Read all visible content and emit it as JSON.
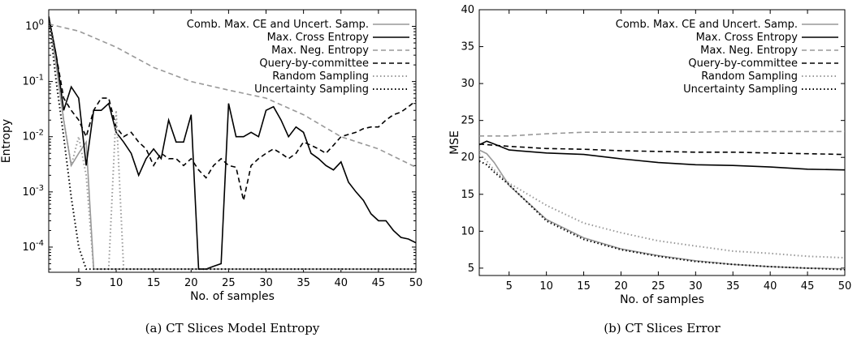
{
  "chart_data": [
    {
      "type": "line",
      "caption": "(a) CT Slices Model Entropy",
      "xlabel": "No. of samples",
      "ylabel": "Entropy",
      "xlim": [
        1,
        50
      ],
      "ylim": [
        3.5e-05,
        2.0
      ],
      "yscale": "log",
      "x_ticks": [
        5,
        10,
        15,
        20,
        25,
        30,
        35,
        40,
        45,
        50
      ],
      "y_ticks": [
        {
          "value": 1,
          "label": "10^0"
        },
        {
          "value": 0.1,
          "label": "10^-1"
        },
        {
          "value": 0.01,
          "label": "10^-2"
        },
        {
          "value": 0.001,
          "label": "10^-3"
        },
        {
          "value": 0.0001,
          "label": "10^-4"
        }
      ],
      "legend_position": "top-right",
      "series": [
        {
          "name": "Comb. Max. CE and Uncert. Samp.",
          "color": "#999999",
          "dash": "solid",
          "x": [
            1,
            2,
            3,
            4,
            5,
            6,
            7,
            8,
            9,
            10,
            11,
            15,
            20,
            25,
            30,
            35,
            40,
            45,
            50
          ],
          "y": [
            1.5,
            0.2,
            0.02,
            0.003,
            0.005,
            0.008,
            4e-05,
            4e-05,
            4e-05,
            4e-05,
            4e-05,
            4e-05,
            4e-05,
            4e-05,
            4e-05,
            4e-05,
            4e-05,
            4e-05,
            4e-05
          ]
        },
        {
          "name": "Max. Cross Entropy",
          "color": "#000000",
          "dash": "solid",
          "x": [
            1,
            2,
            3,
            4,
            5,
            6,
            7,
            8,
            9,
            10,
            11,
            12,
            13,
            14,
            15,
            16,
            17,
            18,
            19,
            20,
            21,
            22,
            23,
            24,
            25,
            26,
            27,
            28,
            29,
            30,
            31,
            32,
            33,
            34,
            35,
            36,
            37,
            38,
            39,
            40,
            41,
            42,
            43,
            44,
            45,
            46,
            47,
            48,
            49,
            50
          ],
          "y": [
            1.5,
            0.3,
            0.03,
            0.08,
            0.05,
            0.003,
            0.03,
            0.03,
            0.04,
            0.012,
            0.008,
            0.005,
            0.002,
            0.004,
            0.006,
            0.004,
            0.02,
            0.008,
            0.008,
            0.025,
            4e-05,
            4e-05,
            4.5e-05,
            5e-05,
            0.04,
            0.01,
            0.01,
            0.012,
            0.01,
            0.03,
            0.035,
            0.02,
            0.01,
            0.015,
            0.012,
            0.005,
            0.004,
            0.003,
            0.0025,
            0.0035,
            0.0015,
            0.001,
            0.0007,
            0.0004,
            0.0003,
            0.0003,
            0.0002,
            0.00015,
            0.00014,
            0.00012
          ]
        },
        {
          "name": "Max. Neg. Entropy",
          "color": "#999999",
          "dash": "dashed",
          "x": [
            1,
            5,
            10,
            15,
            20,
            25,
            30,
            35,
            40,
            45,
            50
          ],
          "y": [
            1.1,
            0.82,
            0.42,
            0.18,
            0.1,
            0.07,
            0.05,
            0.025,
            0.01,
            0.006,
            0.0028
          ]
        },
        {
          "name": "Query-by-committee",
          "color": "#000000",
          "dash": "dashed",
          "x": [
            1,
            2,
            3,
            4,
            5,
            6,
            7,
            8,
            9,
            10,
            11,
            12,
            13,
            14,
            15,
            16,
            17,
            18,
            19,
            20,
            21,
            22,
            23,
            24,
            25,
            26,
            27,
            28,
            29,
            30,
            31,
            32,
            33,
            34,
            35,
            36,
            37,
            38,
            39,
            40,
            41,
            42,
            43,
            44,
            45,
            46,
            47,
            48,
            49,
            50
          ],
          "y": [
            1.5,
            0.3,
            0.05,
            0.03,
            0.02,
            0.01,
            0.03,
            0.05,
            0.05,
            0.015,
            0.01,
            0.012,
            0.008,
            0.006,
            0.003,
            0.005,
            0.004,
            0.004,
            0.003,
            0.004,
            0.0025,
            0.0018,
            0.003,
            0.004,
            0.003,
            0.0028,
            0.0007,
            0.003,
            0.004,
            0.005,
            0.006,
            0.005,
            0.004,
            0.005,
            0.008,
            0.007,
            0.006,
            0.005,
            0.007,
            0.01,
            0.011,
            0.012,
            0.014,
            0.015,
            0.015,
            0.02,
            0.025,
            0.028,
            0.035,
            0.045
          ]
        },
        {
          "name": "Random Sampling",
          "color": "#999999",
          "dash": "dotted",
          "x": [
            1,
            2,
            3,
            4,
            5,
            6,
            7,
            8,
            9,
            10,
            11,
            12,
            15,
            20,
            25,
            30,
            35,
            40,
            45,
            50
          ],
          "y": [
            1.5,
            0.2,
            0.02,
            0.003,
            0.01,
            0.002,
            4e-05,
            4e-05,
            4e-05,
            0.03,
            4e-05,
            4e-05,
            4e-05,
            4e-05,
            4e-05,
            4e-05,
            4e-05,
            4e-05,
            4e-05,
            4e-05
          ]
        },
        {
          "name": "Uncertainty Sampling",
          "color": "#000000",
          "dash": "dotted",
          "x": [
            1,
            2,
            3,
            4,
            5,
            6,
            7,
            8,
            9,
            10,
            15,
            20,
            25,
            30,
            35,
            40,
            45,
            50
          ],
          "y": [
            1.5,
            0.1,
            0.01,
            0.0008,
            0.0001,
            4e-05,
            4e-05,
            4e-05,
            4e-05,
            4e-05,
            4e-05,
            4e-05,
            4e-05,
            4e-05,
            4e-05,
            4e-05,
            4e-05,
            4e-05
          ]
        }
      ]
    },
    {
      "type": "line",
      "caption": "(b) CT Slices Error",
      "xlabel": "No. of samples",
      "ylabel": "MSE",
      "xlim": [
        1,
        50
      ],
      "ylim": [
        4,
        40
      ],
      "x_ticks": [
        5,
        10,
        15,
        20,
        25,
        30,
        35,
        40,
        45,
        50
      ],
      "y_ticks": [
        5,
        10,
        15,
        20,
        25,
        30,
        35,
        40
      ],
      "legend_position": "top-right",
      "series": [
        {
          "name": "Comb. Max. CE and Uncert. Samp.",
          "color": "#999999",
          "dash": "solid",
          "x": [
            1,
            2,
            3,
            5,
            10,
            15,
            20,
            25,
            30,
            35,
            40,
            45,
            50
          ],
          "y": [
            21.0,
            20.5,
            19.3,
            16.2,
            11.6,
            9.1,
            7.6,
            6.7,
            6.0,
            5.5,
            5.2,
            5.0,
            4.9
          ]
        },
        {
          "name": "Max. Cross Entropy",
          "color": "#000000",
          "dash": "solid",
          "x": [
            1,
            2,
            3,
            5,
            10,
            15,
            20,
            25,
            30,
            35,
            40,
            45,
            50
          ],
          "y": [
            21.7,
            22.2,
            21.8,
            21.0,
            20.6,
            20.4,
            19.8,
            19.3,
            19.0,
            18.9,
            18.7,
            18.4,
            18.3
          ]
        },
        {
          "name": "Max. Neg. Entropy",
          "color": "#999999",
          "dash": "dashed",
          "x": [
            1,
            5,
            10,
            15,
            20,
            25,
            30,
            35,
            40,
            45,
            50
          ],
          "y": [
            22.9,
            22.9,
            23.2,
            23.4,
            23.4,
            23.4,
            23.4,
            23.5,
            23.5,
            23.5,
            23.5
          ]
        },
        {
          "name": "Query-by-committee",
          "color": "#000000",
          "dash": "dashed",
          "x": [
            1,
            5,
            10,
            15,
            20,
            25,
            30,
            35,
            40,
            45,
            50
          ],
          "y": [
            21.8,
            21.5,
            21.2,
            21.1,
            20.9,
            20.8,
            20.7,
            20.7,
            20.6,
            20.5,
            20.4
          ]
        },
        {
          "name": "Random Sampling",
          "color": "#999999",
          "dash": "dotted",
          "x": [
            1,
            2,
            3,
            5,
            10,
            15,
            20,
            25,
            30,
            35,
            40,
            45,
            50
          ],
          "y": [
            20.5,
            19.5,
            18.3,
            16.5,
            13.5,
            11.1,
            9.8,
            8.7,
            8.0,
            7.3,
            7.0,
            6.6,
            6.4
          ]
        },
        {
          "name": "Uncertainty Sampling",
          "color": "#000000",
          "dash": "dotted",
          "x": [
            1,
            2,
            3,
            5,
            10,
            15,
            20,
            25,
            30,
            35,
            40,
            45,
            50
          ],
          "y": [
            19.5,
            19.0,
            18.0,
            16.3,
            11.4,
            8.9,
            7.5,
            6.6,
            5.9,
            5.5,
            5.2,
            5.0,
            4.8
          ]
        }
      ]
    }
  ]
}
